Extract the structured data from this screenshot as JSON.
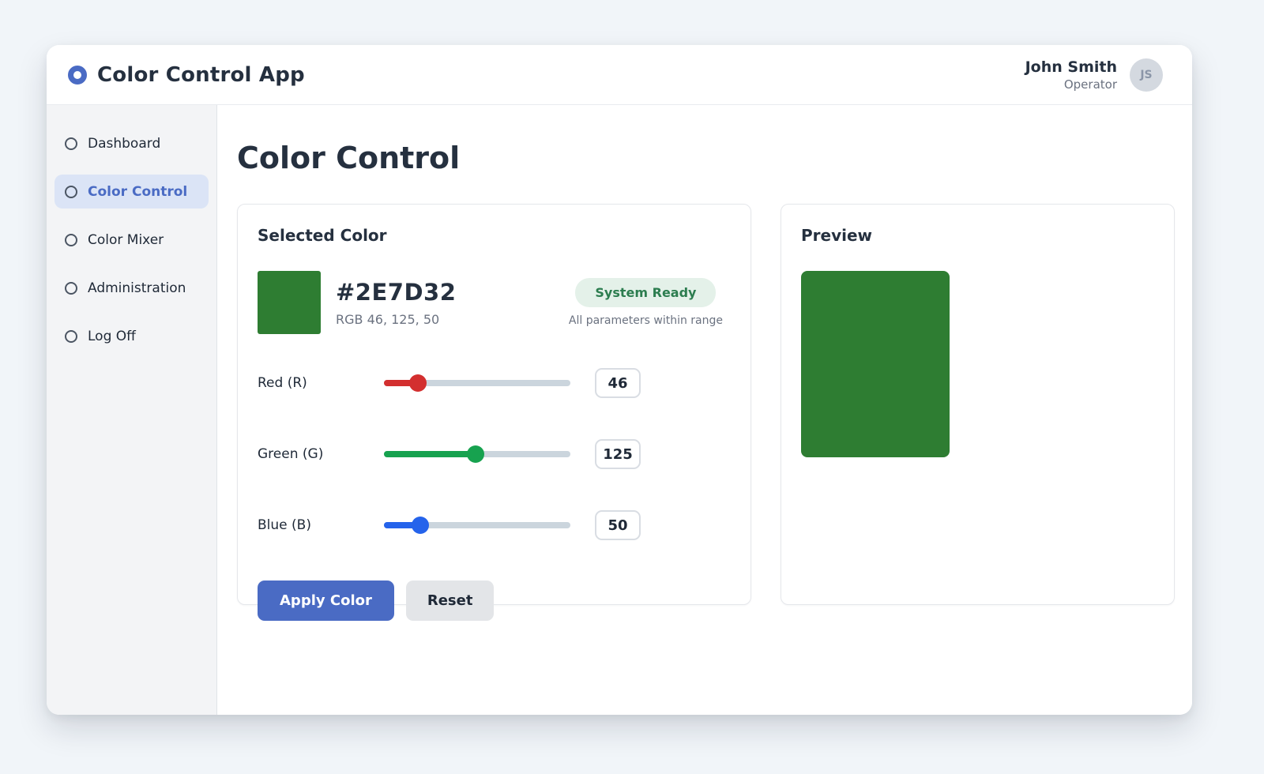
{
  "app": {
    "title": "Color Control App"
  },
  "user": {
    "name": "John Smith",
    "role": "Operator",
    "avatar_initials": "JS"
  },
  "sidebar": {
    "items": [
      {
        "label": "Dashboard",
        "active": false
      },
      {
        "label": "Color Control",
        "active": true
      },
      {
        "label": "Color Mixer",
        "active": false
      },
      {
        "label": "Administration",
        "active": false
      },
      {
        "label": "Log Off",
        "active": false
      }
    ]
  },
  "page": {
    "title": "Color Control"
  },
  "selected_color": {
    "card_title": "Selected Color",
    "hex": "#2E7D32",
    "rgb_label": "RGB 46, 125, 50",
    "status_badge": "System Ready",
    "status_note": "All parameters within range",
    "sliders": [
      {
        "label": "Red (R)",
        "key": "red",
        "value": 46,
        "max": 255,
        "color": "#d32f2f"
      },
      {
        "label": "Green (G)",
        "key": "green",
        "value": 125,
        "max": 255,
        "color": "#17a24f"
      },
      {
        "label": "Blue (B)",
        "key": "blue",
        "value": 50,
        "max": 255,
        "color": "#2563eb"
      }
    ],
    "apply_label": "Apply Color",
    "reset_label": "Reset"
  },
  "preview": {
    "card_title": "Preview",
    "color": "#2E7D32"
  },
  "colors": {
    "accent_blue": "#4a6bc4",
    "active_item_bg": "#dbe4f6",
    "badge_bg": "#e4f1e9",
    "badge_text": "#2c7d4f",
    "swatch_green": "#2E7D32",
    "track_gray": "#cbd5dd",
    "page_bg": "#f1f5f9"
  }
}
